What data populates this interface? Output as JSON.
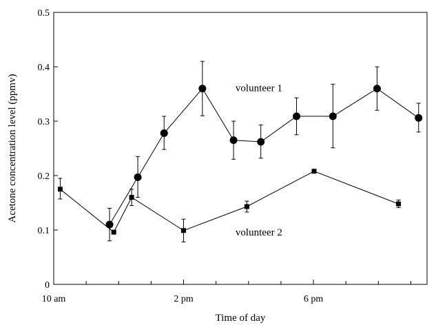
{
  "chart_data": {
    "type": "line",
    "xlabel": "Time of day",
    "ylabel": "Acetone concentration level (ppmv)",
    "x_unit": "hour of day",
    "xlim": [
      10,
      21.5
    ],
    "ylim": [
      0,
      0.5
    ],
    "x_ticks": [
      {
        "value": 10,
        "label": "10 am"
      },
      {
        "value": 11,
        "label": ""
      },
      {
        "value": 12,
        "label": ""
      },
      {
        "value": 13,
        "label": ""
      },
      {
        "value": 14,
        "label": "2 pm"
      },
      {
        "value": 15,
        "label": ""
      },
      {
        "value": 16,
        "label": ""
      },
      {
        "value": 17,
        "label": ""
      },
      {
        "value": 18,
        "label": "6 pm"
      },
      {
        "value": 19,
        "label": ""
      },
      {
        "value": 20,
        "label": ""
      },
      {
        "value": 21,
        "label": ""
      }
    ],
    "y_ticks": [
      {
        "value": 0,
        "label": "0"
      },
      {
        "value": 0.1,
        "label": "0.1"
      },
      {
        "value": 0.2,
        "label": "0.2"
      },
      {
        "value": 0.3,
        "label": "0.3"
      },
      {
        "value": 0.4,
        "label": "0.4"
      },
      {
        "value": 0.5,
        "label": "0.5"
      }
    ],
    "grid": false,
    "series": [
      {
        "name": "volunteer 1",
        "marker": "circle",
        "color": "#000000",
        "points": [
          {
            "x": 11.72,
            "y": 0.11,
            "err_low": 0.08,
            "err_high": 0.14
          },
          {
            "x": 12.59,
            "y": 0.197,
            "err_low": 0.16,
            "err_high": 0.235
          },
          {
            "x": 13.4,
            "y": 0.278,
            "err_low": 0.248,
            "err_high": 0.309
          },
          {
            "x": 14.58,
            "y": 0.36,
            "err_low": 0.31,
            "err_high": 0.41
          },
          {
            "x": 15.54,
            "y": 0.265,
            "err_low": 0.23,
            "err_high": 0.3
          },
          {
            "x": 16.38,
            "y": 0.262,
            "err_low": 0.232,
            "err_high": 0.293
          },
          {
            "x": 17.48,
            "y": 0.309,
            "err_low": 0.275,
            "err_high": 0.343
          },
          {
            "x": 18.6,
            "y": 0.309,
            "err_low": 0.251,
            "err_high": 0.368
          },
          {
            "x": 19.96,
            "y": 0.36,
            "err_low": 0.32,
            "err_high": 0.4
          },
          {
            "x": 21.24,
            "y": 0.306,
            "err_low": 0.28,
            "err_high": 0.333
          }
        ]
      },
      {
        "name": "volunteer 2",
        "marker": "square",
        "color": "#000000",
        "points": [
          {
            "x": 10.2,
            "y": 0.175,
            "err_low": 0.157,
            "err_high": 0.195
          },
          {
            "x": 11.85,
            "y": 0.096,
            "err_low": null,
            "err_high": null
          },
          {
            "x": 12.4,
            "y": 0.16,
            "err_low": 0.145,
            "err_high": 0.175
          },
          {
            "x": 14.0,
            "y": 0.099,
            "err_low": 0.078,
            "err_high": 0.12
          },
          {
            "x": 15.95,
            "y": 0.143,
            "err_low": 0.133,
            "err_high": 0.153
          },
          {
            "x": 18.02,
            "y": 0.208,
            "err_low": null,
            "err_high": null
          },
          {
            "x": 20.62,
            "y": 0.148,
            "err_low": 0.141,
            "err_high": 0.155
          }
        ]
      }
    ],
    "annotations": [
      {
        "text": "volunteer 1",
        "x": 15.6,
        "y": 0.355
      },
      {
        "text": "volunteer 2",
        "x": 15.6,
        "y": 0.09
      }
    ]
  }
}
